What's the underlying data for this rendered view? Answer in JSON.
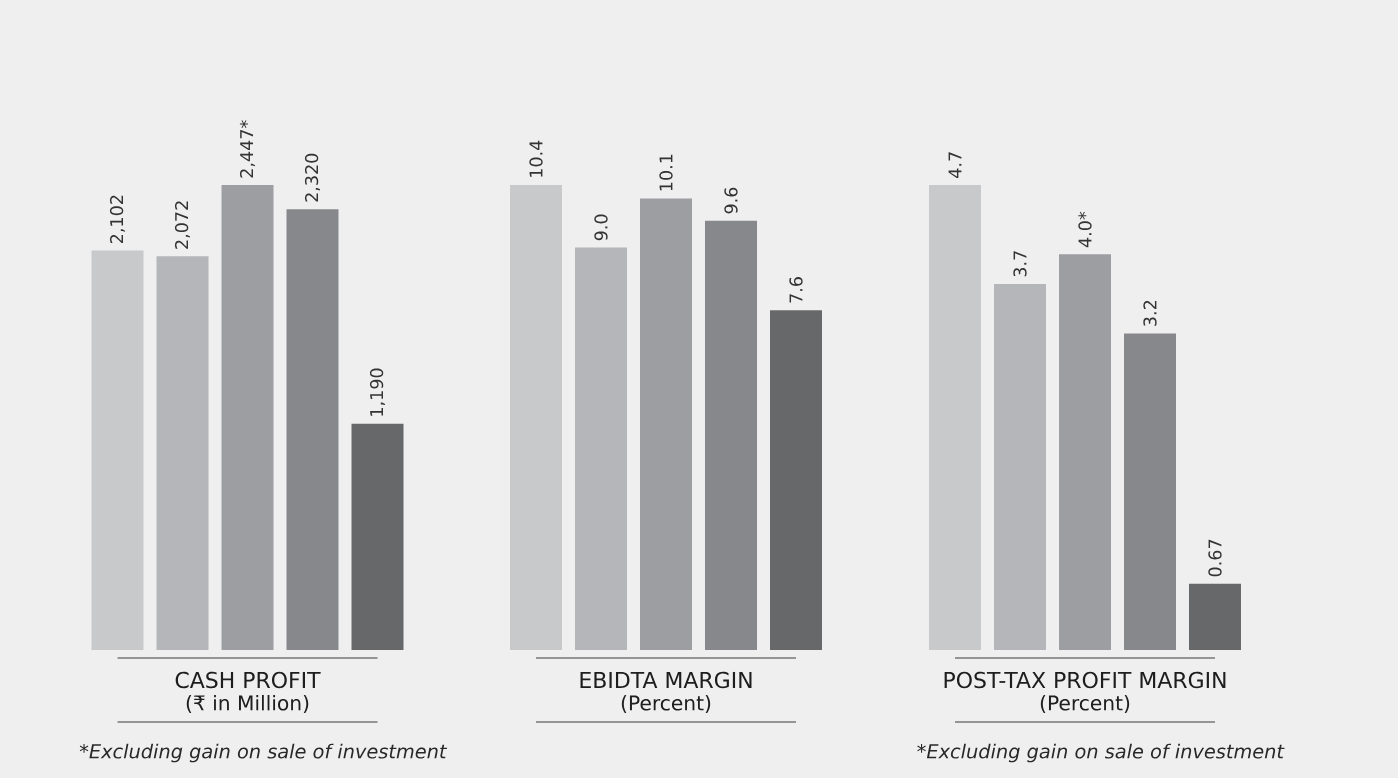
{
  "chart_data": [
    {
      "type": "bar",
      "title": "CASH PROFIT",
      "subtitle": "(₹ in Million)",
      "categories": [
        null,
        null,
        null,
        null,
        null
      ],
      "values": [
        2102,
        2072,
        2447,
        2320,
        1190
      ],
      "value_labels": [
        "2,102",
        "2,072",
        "2,447*",
        "2,320",
        "1,190"
      ],
      "colors": [
        "#c8c9cb",
        "#b4b6b9",
        "#9d9ea1",
        "#87888b",
        "#67686a"
      ],
      "tick_labels": false,
      "annotations": [
        "*Excluding gain on sale of investment"
      ]
    },
    {
      "type": "bar",
      "title": "EBIDTA MARGIN",
      "subtitle": "(Percent)",
      "categories": [
        null,
        null,
        null,
        null,
        null
      ],
      "values": [
        10.4,
        9.0,
        10.1,
        9.6,
        7.6
      ],
      "value_labels": [
        "10.4",
        "9.0",
        "10.1",
        "9.6",
        "7.6"
      ],
      "colors": [
        "#c8c9cb",
        "#b4b6b9",
        "#9d9ea1",
        "#87888b",
        "#67686a"
      ],
      "tick_labels": false
    },
    {
      "type": "bar",
      "title": "POST-TAX PROFIT MARGIN",
      "subtitle": "(Percent)",
      "categories": [
        null,
        null,
        null,
        null,
        null
      ],
      "values": [
        4.7,
        3.7,
        4.0,
        3.2,
        0.67
      ],
      "value_labels": [
        "4.7",
        "3.7",
        "4.0*",
        "3.2",
        "0.67"
      ],
      "colors": [
        "#c8c9cb",
        "#b4b6b9",
        "#9d9ea1",
        "#87888b",
        "#67686a"
      ],
      "tick_labels": false,
      "annotations": [
        "*Excluding gain on sale of investment"
      ]
    }
  ]
}
